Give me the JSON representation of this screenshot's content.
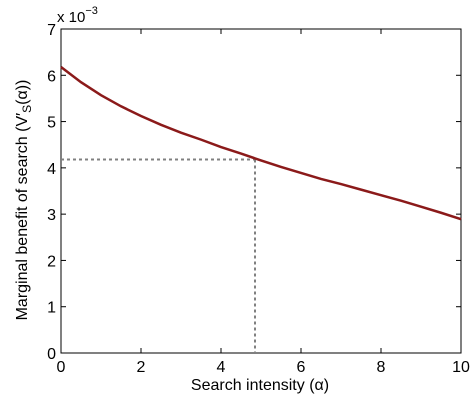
{
  "chart_data": {
    "type": "line",
    "xlabel": "Search intensity (α)",
    "ylabel_main": "Marginal benefit of search (V′",
    "ylabel_sub": "S",
    "ylabel_tail": "(α))",
    "y_scale_base": "x 10",
    "y_scale_exp": "−3",
    "xlim": [
      0,
      10
    ],
    "ylim": [
      0,
      7
    ],
    "x_ticks": [
      0,
      2,
      4,
      6,
      8,
      10
    ],
    "y_ticks": [
      0,
      1,
      2,
      3,
      4,
      5,
      6,
      7
    ],
    "grid": false,
    "series": [
      {
        "color": "#8b1a1a",
        "x": [
          0,
          0.5,
          1,
          1.5,
          2,
          2.5,
          3,
          3.5,
          4,
          4.5,
          5,
          5.5,
          6,
          6.5,
          7,
          7.5,
          8,
          8.5,
          9,
          9.5,
          10
        ],
        "y": [
          6.18,
          5.85,
          5.57,
          5.33,
          5.12,
          4.93,
          4.76,
          4.61,
          4.45,
          4.31,
          4.16,
          4.02,
          3.89,
          3.76,
          3.65,
          3.53,
          3.41,
          3.29,
          3.16,
          3.03,
          2.89
        ]
      }
    ],
    "reference_point": {
      "x": 4.85,
      "y": 4.18,
      "color": "#808080",
      "style": "dotted"
    }
  }
}
